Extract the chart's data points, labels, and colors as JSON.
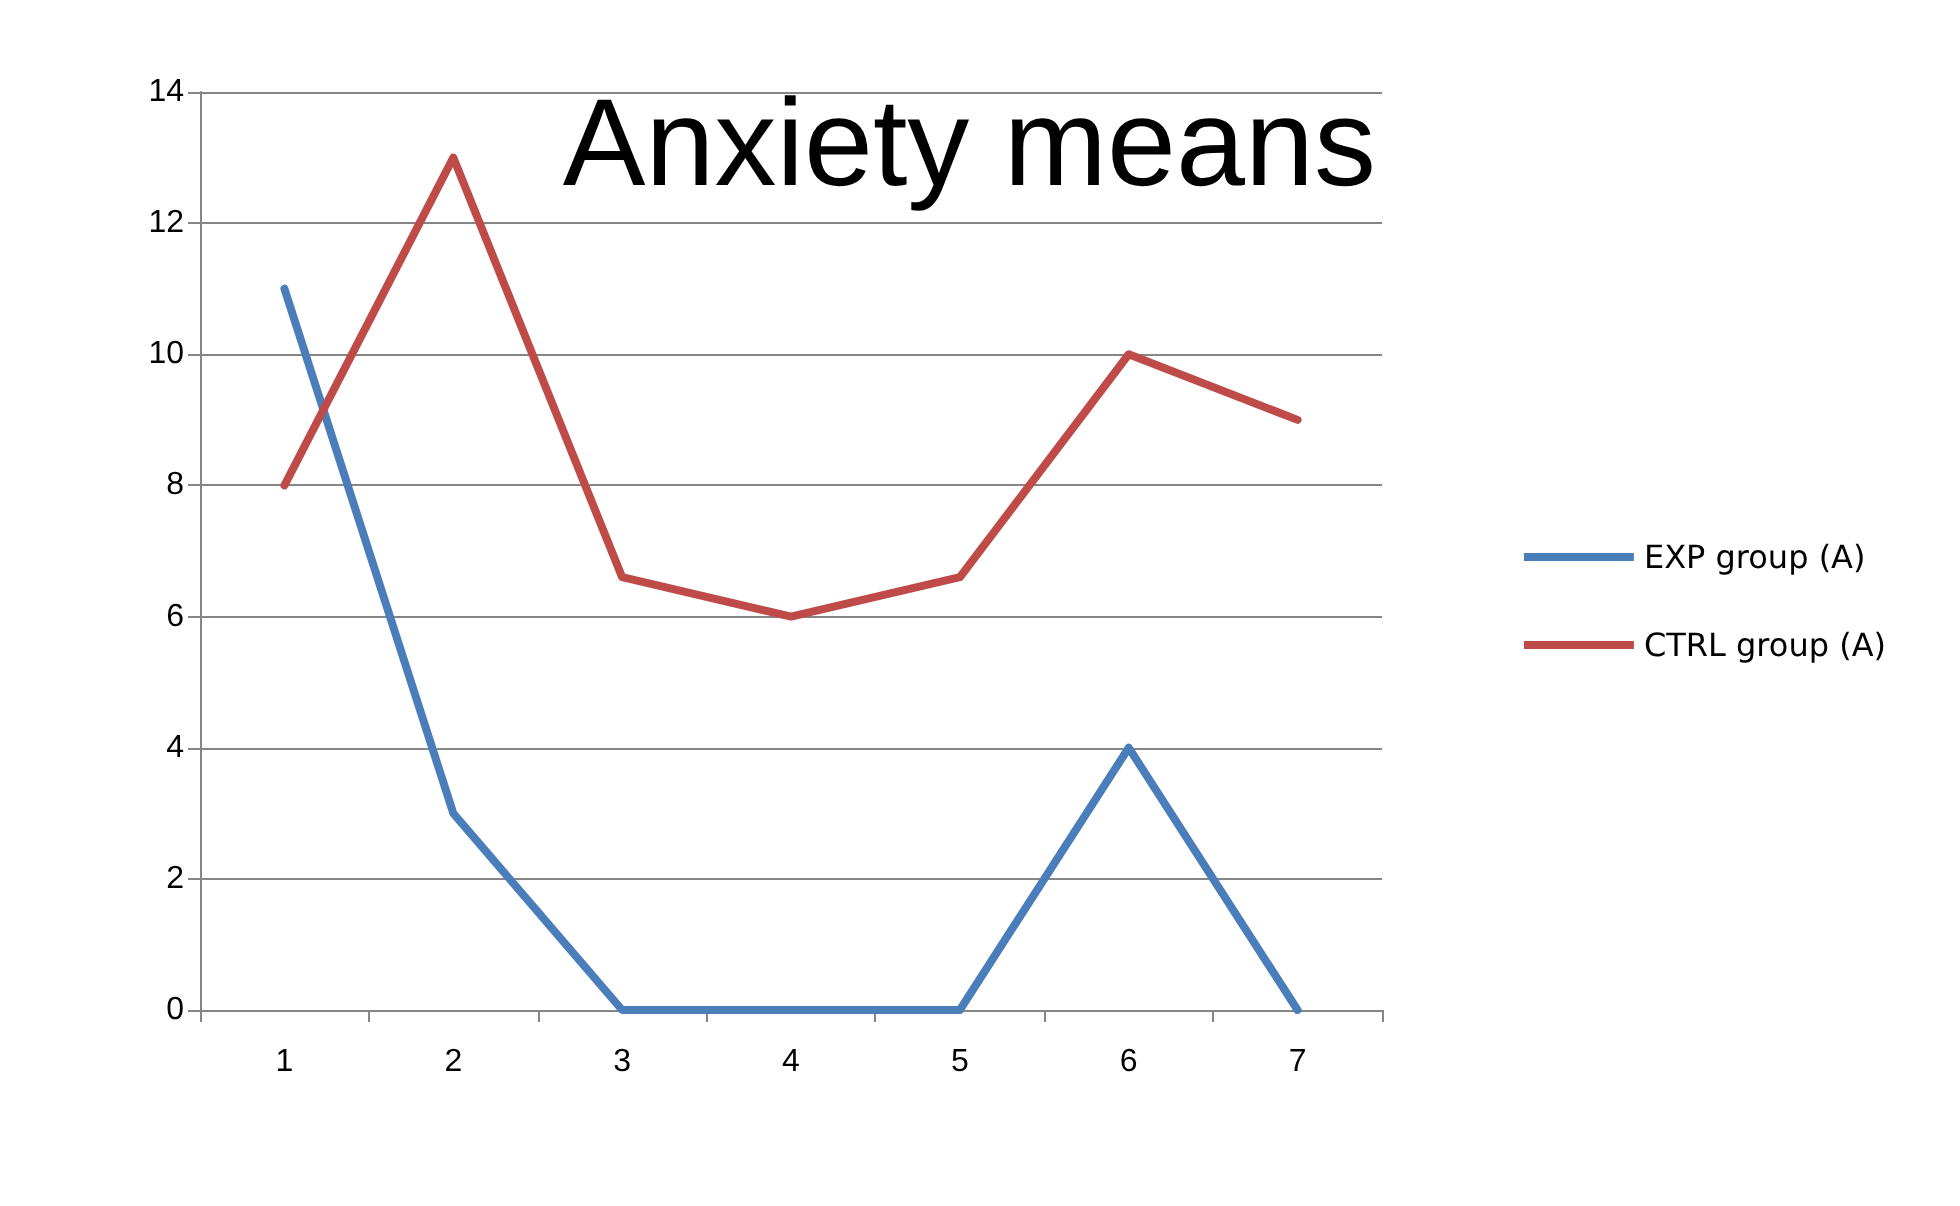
{
  "chart_data": {
    "type": "line",
    "title": "Anxiety means",
    "categories": [
      "1",
      "2",
      "3",
      "4",
      "5",
      "6",
      "7"
    ],
    "series": [
      {
        "name": "EXP group (A)",
        "color": "#4a7ebb",
        "values": [
          11,
          3,
          0,
          0,
          0,
          4,
          0
        ]
      },
      {
        "name": "CTRL group (A)",
        "color": "#be4b48",
        "values": [
          8,
          13,
          6.6,
          6,
          6.6,
          10,
          9
        ]
      }
    ],
    "ylim": [
      0,
      14
    ],
    "yticks": [
      0,
      2,
      4,
      6,
      8,
      10,
      12,
      14
    ],
    "grid": "y",
    "legend": "right",
    "marker": "none",
    "line_style": "solid"
  }
}
